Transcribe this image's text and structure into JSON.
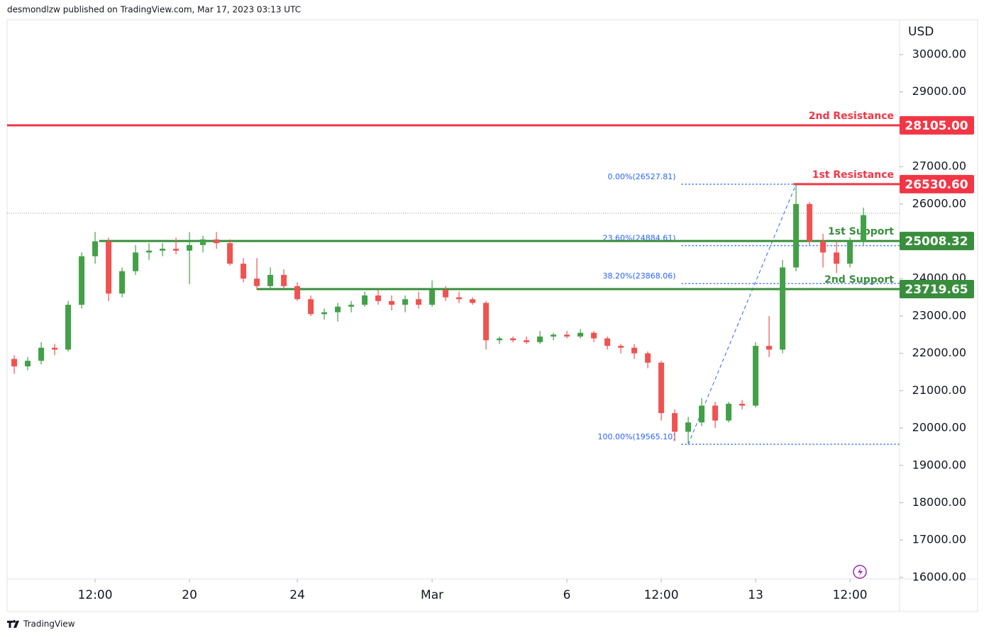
{
  "chart_data": {
    "type": "candlestick",
    "header": "desmondlzw published on TradingView.com, Mar 17, 2023 03:13 UTC",
    "currency": "USD",
    "footer": "TradingView",
    "up_color": "#43a047",
    "down_color": "#ef5350",
    "grid": false,
    "xlim": [
      -0.53,
      65.68
    ],
    "xticks": [
      {
        "value": 6,
        "label": "12:00"
      },
      {
        "value": 13,
        "label": "20"
      },
      {
        "value": 21,
        "label": "24"
      },
      {
        "value": 31,
        "label": "Mar"
      },
      {
        "value": 41,
        "label": "6"
      },
      {
        "value": 48,
        "label": "12:00"
      },
      {
        "value": 55,
        "label": "13"
      },
      {
        "value": 62,
        "label": "12:00"
      }
    ],
    "ylim": [
      15960,
      30930
    ],
    "yticks": [
      {
        "value": 30000,
        "label": "30000.00"
      },
      {
        "value": 29000,
        "label": "29000.00"
      },
      {
        "value": 27000,
        "label": "27000.00"
      },
      {
        "value": 26000,
        "label": "26000.00"
      },
      {
        "value": 24000,
        "label": "24000.00"
      },
      {
        "value": 23000,
        "label": "23000.00"
      },
      {
        "value": 22000,
        "label": "22000.00"
      },
      {
        "value": 21000,
        "label": "21000.00"
      },
      {
        "value": 20000,
        "label": "20000.00"
      },
      {
        "value": 19000,
        "label": "19000.00"
      },
      {
        "value": 18000,
        "label": "18000.00"
      },
      {
        "value": 17000,
        "label": "17000.00"
      },
      {
        "value": 16000,
        "label": "16000.00"
      }
    ],
    "open": [
      21850,
      21650,
      21800,
      22150,
      22100,
      23300,
      24600,
      25000,
      23600,
      24200,
      24700,
      24750,
      24800,
      24750,
      24900,
      25050,
      24950,
      24400,
      24000,
      23800,
      24100,
      23800,
      23450,
      23050,
      23100,
      23250,
      23300,
      23550,
      23400,
      23300,
      23450,
      23300,
      23700,
      23500,
      23450,
      23350,
      22350,
      22400,
      22350,
      22300,
      22450,
      22500,
      22450,
      22550,
      22400,
      22200,
      22150,
      22000,
      21750,
      20400,
      19900,
      20150,
      20600,
      20200,
      20650,
      20600,
      22200,
      22100,
      24300,
      26000,
      25000,
      24700,
      24400,
      25000
    ],
    "high": [
      21950,
      21900,
      22300,
      22250,
      23400,
      24700,
      25250,
      25100,
      24300,
      24900,
      24950,
      24950,
      25100,
      25250,
      25150,
      25250,
      25050,
      24550,
      24550,
      24300,
      24250,
      23900,
      23550,
      23200,
      23350,
      23400,
      23650,
      23700,
      23550,
      23550,
      23650,
      23950,
      23800,
      23650,
      23500,
      23400,
      22450,
      22450,
      22450,
      22600,
      22550,
      22600,
      22650,
      22600,
      22450,
      22250,
      22250,
      22050,
      21800,
      20500,
      20300,
      20800,
      20700,
      20700,
      20750,
      22300,
      23000,
      24500,
      26530,
      26050,
      25200,
      25000,
      25100,
      25900
    ],
    "low": [
      21450,
      21550,
      21700,
      21950,
      22050,
      23200,
      24400,
      23400,
      23500,
      24100,
      24500,
      24600,
      24650,
      23850,
      24700,
      24800,
      24350,
      23900,
      23700,
      23700,
      23750,
      23400,
      23000,
      22900,
      22850,
      23100,
      23250,
      23300,
      23150,
      23100,
      23200,
      23250,
      23400,
      23350,
      23300,
      22100,
      22250,
      22300,
      22250,
      22250,
      22350,
      22400,
      22400,
      22300,
      22100,
      22000,
      21850,
      21600,
      20200,
      19650,
      19565,
      20050,
      20000,
      20150,
      20500,
      20550,
      21900,
      22000,
      24200,
      24900,
      24300,
      24150,
      24300,
      24900
    ],
    "close": [
      21650,
      21800,
      22150,
      22100,
      23300,
      24600,
      25000,
      23600,
      24200,
      24700,
      24750,
      24800,
      24750,
      24900,
      25050,
      24950,
      24400,
      24000,
      23800,
      24100,
      23800,
      23450,
      23050,
      23100,
      23250,
      23300,
      23550,
      23400,
      23300,
      23450,
      23300,
      23700,
      23500,
      23450,
      23350,
      22350,
      22400,
      22350,
      22300,
      22450,
      22500,
      22450,
      22550,
      22400,
      22200,
      22150,
      22000,
      21750,
      20400,
      19900,
      20150,
      20600,
      20200,
      20650,
      20600,
      22200,
      22100,
      24300,
      26000,
      25000,
      24700,
      24400,
      25000,
      25700
    ],
    "price_line": 25750,
    "levels": [
      {
        "name": "2nd Resistance",
        "value": 28105,
        "value_label": "28105.00",
        "color": "#f23645",
        "x_start": -0.53
      },
      {
        "name": "1st Resistance",
        "value": 26530.6,
        "value_label": "26530.60",
        "color": "#f23645",
        "x_start": 57.8
      },
      {
        "name": "1st Support",
        "value": 25008.32,
        "value_label": "25008.32",
        "color": "#388e3c",
        "x_start": 6.3
      },
      {
        "name": "2nd Support",
        "value": 23719.65,
        "value_label": "23719.65",
        "color": "#388e3c",
        "x_start": 18
      }
    ],
    "fibonacci": {
      "color": "#2962ff",
      "x_start": 49.5,
      "levels": [
        {
          "value": 26527.81,
          "label": "0.00%(26527.81)"
        },
        {
          "value": 24884.61,
          "label": "23.60%(24884.61)"
        },
        {
          "value": 23868.06,
          "label": "38.20%(23868.06)"
        },
        {
          "value": 19565.1,
          "label": "100.00%(19565.10)"
        }
      ]
    }
  }
}
